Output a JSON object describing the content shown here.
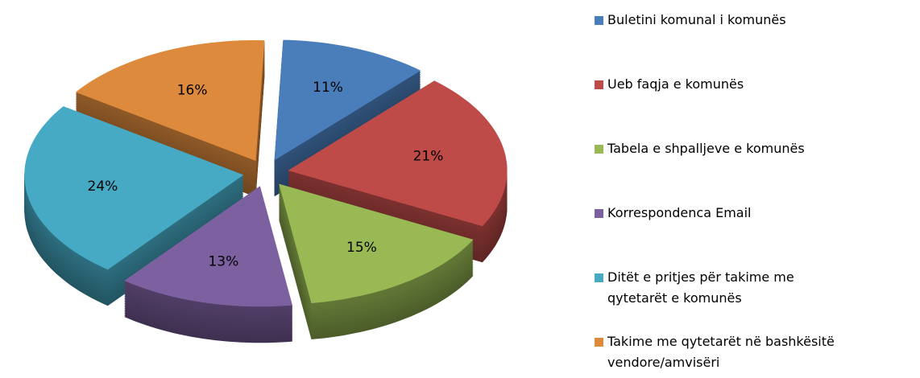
{
  "chart_data": {
    "type": "pie3d",
    "categories": [
      "Buletini komunal i komunës",
      "Ueb faqja e komunës",
      "Tabela e shpalljeve e komunës",
      "Korrespondenca Email",
      "Ditët e pritjes për takime me qytetarët e komunës",
      "Takime me qytetarët në bashkësitë vendore/amvisëri"
    ],
    "values": [
      11,
      21,
      15,
      13,
      24,
      16
    ],
    "value_labels": [
      "11%",
      "21%",
      "15%",
      "13%",
      "24%",
      "16%"
    ],
    "colors": [
      "#4a7ebb",
      "#be4b48",
      "#98b954",
      "#7d60a0",
      "#46aac5",
      "#dd8a3d"
    ],
    "legend": "right"
  }
}
